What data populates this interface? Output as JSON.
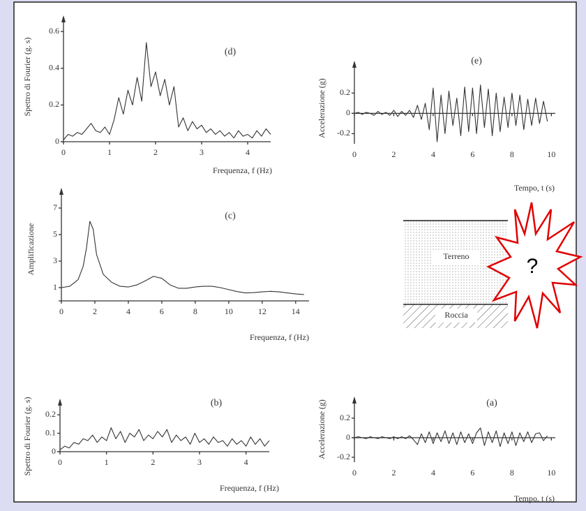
{
  "chart_data": [
    {
      "type": "line",
      "title": "(d)",
      "x_label": "Frequenza, f (Hz)",
      "y_label": "Spettro di Fourier (g. s)",
      "color": "#333333",
      "xlim": [
        0,
        4.5
      ],
      "ylim": [
        0,
        0.65
      ],
      "xticks": [
        0,
        1,
        2,
        3,
        4
      ],
      "yticks": [
        0,
        0.2,
        0.4,
        0.6
      ],
      "x": [
        0,
        0.1,
        0.2,
        0.3,
        0.4,
        0.5,
        0.6,
        0.7,
        0.8,
        0.9,
        1,
        1.1,
        1.2,
        1.3,
        1.4,
        1.5,
        1.6,
        1.7,
        1.8,
        1.9,
        2,
        2.1,
        2.2,
        2.3,
        2.4,
        2.5,
        2.6,
        2.7,
        2.8,
        2.9,
        3,
        3.1,
        3.2,
        3.3,
        3.4,
        3.5,
        3.6,
        3.7,
        3.8,
        3.9,
        4,
        4.1,
        4.2,
        4.3,
        4.4,
        4.5
      ],
      "values": [
        0.01,
        0.04,
        0.03,
        0.05,
        0.04,
        0.07,
        0.1,
        0.06,
        0.05,
        0.08,
        0.04,
        0.12,
        0.24,
        0.15,
        0.28,
        0.2,
        0.35,
        0.22,
        0.54,
        0.3,
        0.38,
        0.25,
        0.34,
        0.2,
        0.3,
        0.08,
        0.13,
        0.06,
        0.11,
        0.07,
        0.09,
        0.05,
        0.07,
        0.04,
        0.06,
        0.03,
        0.05,
        0.02,
        0.06,
        0.03,
        0.04,
        0.02,
        0.06,
        0.03,
        0.07,
        0.04
      ]
    },
    {
      "type": "line",
      "title": "(e)",
      "x_label": "Tempo, t (s)",
      "y_label": "Accelerazione (g)",
      "color": "#333333",
      "xlim": [
        0,
        10.2
      ],
      "ylim": [
        -0.3,
        0.45
      ],
      "xticks": [
        0,
        2,
        4,
        6,
        8,
        10
      ],
      "yticks": [
        -0.2,
        0,
        0.2
      ],
      "x": [
        0,
        0.2,
        0.4,
        0.6,
        0.8,
        1,
        1.2,
        1.4,
        1.6,
        1.8,
        2,
        2.2,
        2.4,
        2.6,
        2.8,
        3,
        3.2,
        3.4,
        3.6,
        3.8,
        4,
        4.2,
        4.4,
        4.6,
        4.8,
        5,
        5.2,
        5.4,
        5.6,
        5.8,
        6,
        6.2,
        6.4,
        6.6,
        6.8,
        7,
        7.2,
        7.4,
        7.6,
        7.8,
        8,
        8.2,
        8.4,
        8.6,
        8.8,
        9,
        9.2,
        9.4,
        9.6,
        9.8
      ],
      "values": [
        0,
        0.01,
        -0.01,
        0.01,
        0,
        -0.02,
        0.02,
        -0.01,
        0.01,
        -0.02,
        0.03,
        -0.03,
        0.02,
        -0.02,
        0.03,
        -0.04,
        0.08,
        -0.06,
        0.1,
        -0.16,
        0.25,
        -0.28,
        0.18,
        -0.2,
        0.22,
        -0.12,
        0.15,
        -0.22,
        0.26,
        -0.18,
        0.25,
        -0.2,
        0.28,
        -0.14,
        0.24,
        -0.22,
        0.2,
        -0.18,
        0.16,
        -0.14,
        0.2,
        -0.12,
        0.18,
        -0.16,
        0.14,
        -0.12,
        0.15,
        -0.1,
        0.12,
        -0.08
      ]
    },
    {
      "type": "line",
      "title": "(c)",
      "x_label": "Frequenza, f (Hz)",
      "y_label": "Amplificazione",
      "color": "#333333",
      "xlim": [
        0,
        14.8
      ],
      "ylim": [
        0,
        8
      ],
      "xticks": [
        0,
        2,
        4,
        6,
        8,
        10,
        12,
        14
      ],
      "yticks": [
        1,
        3,
        5,
        7
      ],
      "x": [
        0,
        0.5,
        1,
        1.3,
        1.5,
        1.7,
        1.9,
        2.1,
        2.5,
        3,
        3.5,
        4,
        4.5,
        5,
        5.5,
        6,
        6.5,
        7,
        7.5,
        8,
        8.5,
        9,
        9.5,
        10,
        10.5,
        11,
        11.5,
        12,
        12.5,
        13,
        13.5,
        14,
        14.5
      ],
      "values": [
        1,
        1.1,
        1.6,
        2.6,
        4,
        6,
        5.4,
        3.5,
        2,
        1.4,
        1.1,
        1.05,
        1.2,
        1.5,
        1.85,
        1.7,
        1.2,
        0.95,
        0.95,
        1.05,
        1.1,
        1.1,
        1.0,
        0.85,
        0.7,
        0.6,
        0.62,
        0.68,
        0.72,
        0.68,
        0.6,
        0.52,
        0.48
      ]
    },
    {
      "type": "line",
      "title": "(b)",
      "x_label": "Frequenza, f (Hz)",
      "y_label": "Spettro di Fourier (g. s)",
      "color": "#333333",
      "xlim": [
        0,
        4.5
      ],
      "ylim": [
        0,
        0.25
      ],
      "xticks": [
        0,
        1,
        2,
        3,
        4
      ],
      "yticks": [
        0,
        0.1,
        0.2
      ],
      "x": [
        0,
        0.1,
        0.2,
        0.3,
        0.4,
        0.5,
        0.6,
        0.7,
        0.8,
        0.9,
        1,
        1.1,
        1.2,
        1.3,
        1.4,
        1.5,
        1.6,
        1.7,
        1.8,
        1.9,
        2,
        2.1,
        2.2,
        2.3,
        2.4,
        2.5,
        2.6,
        2.7,
        2.8,
        2.9,
        3,
        3.1,
        3.2,
        3.3,
        3.4,
        3.5,
        3.6,
        3.7,
        3.8,
        3.9,
        4,
        4.1,
        4.2,
        4.3,
        4.4,
        4.5
      ],
      "values": [
        0.01,
        0.03,
        0.02,
        0.05,
        0.04,
        0.07,
        0.06,
        0.09,
        0.05,
        0.08,
        0.06,
        0.13,
        0.07,
        0.11,
        0.05,
        0.1,
        0.08,
        0.12,
        0.06,
        0.09,
        0.07,
        0.11,
        0.08,
        0.12,
        0.05,
        0.09,
        0.06,
        0.08,
        0.04,
        0.1,
        0.05,
        0.07,
        0.04,
        0.08,
        0.05,
        0.06,
        0.03,
        0.07,
        0.04,
        0.06,
        0.03,
        0.08,
        0.04,
        0.07,
        0.03,
        0.06
      ]
    },
    {
      "type": "line",
      "title": "(a)",
      "x_label": "Tempo, t (s)",
      "y_label": "Accelerazione (g)",
      "color": "#333333",
      "xlim": [
        0,
        10.2
      ],
      "ylim": [
        -0.25,
        0.35
      ],
      "xticks": [
        0,
        2,
        4,
        6,
        8,
        10
      ],
      "yticks": [
        -0.2,
        0,
        0.2
      ],
      "x": [
        0,
        0.2,
        0.4,
        0.6,
        0.8,
        1,
        1.2,
        1.4,
        1.6,
        1.8,
        2,
        2.2,
        2.4,
        2.6,
        2.8,
        3,
        3.2,
        3.4,
        3.6,
        3.8,
        4,
        4.2,
        4.4,
        4.6,
        4.8,
        5,
        5.2,
        5.4,
        5.6,
        5.8,
        6,
        6.2,
        6.4,
        6.6,
        6.8,
        7,
        7.2,
        7.4,
        7.6,
        7.8,
        8,
        8.2,
        8.4,
        8.6,
        8.8,
        9,
        9.2,
        9.4,
        9.6,
        9.8
      ],
      "values": [
        0,
        0.01,
        0,
        -0.01,
        0.01,
        0,
        -0.01,
        0.01,
        0,
        -0.01,
        0.01,
        -0.01,
        0.01,
        -0.01,
        0.02,
        -0.02,
        -0.07,
        0.04,
        -0.05,
        0.06,
        -0.06,
        0.05,
        -0.04,
        0.07,
        -0.06,
        0.05,
        -0.07,
        0.06,
        -0.05,
        0.04,
        -0.06,
        0.05,
        0.1,
        -0.08,
        0.06,
        -0.05,
        0.07,
        -0.09,
        0.05,
        -0.06,
        0.06,
        -0.08,
        0.05,
        -0.04,
        0.06,
        -0.05,
        0.04,
        0.05,
        -0.03,
        0.02
      ]
    }
  ],
  "diagram": {
    "soil": "Terreno",
    "rock": "Roccia",
    "question": "?"
  }
}
